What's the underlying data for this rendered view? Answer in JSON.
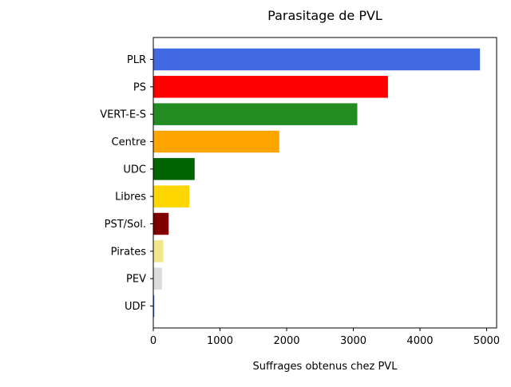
{
  "chart_data": {
    "type": "bar",
    "orientation": "horizontal",
    "title": "Parasitage de PVL",
    "xlabel": "Suffrages obtenus chez PVL",
    "ylabel": "",
    "xlim": [
      0,
      5150
    ],
    "xticks": [
      0,
      1000,
      2000,
      3000,
      4000,
      5000
    ],
    "xtick_labels": [
      "0",
      "1000",
      "2000",
      "3000",
      "4000",
      "5000"
    ],
    "grid": false,
    "legend": "none",
    "categories": [
      "PLR",
      "PS",
      "VERT-E-S",
      "Centre",
      "UDC",
      "Libres",
      "PST/Sol.",
      "Pirates",
      "PEV",
      "UDF"
    ],
    "values": [
      4900,
      3520,
      3060,
      1890,
      620,
      540,
      230,
      150,
      130,
      15
    ],
    "colors": [
      "#4169e1",
      "#ff0000",
      "#228b22",
      "#ffa500",
      "#006400",
      "#ffd700",
      "#800000",
      "#f0e68c",
      "#dcdcdc",
      "#4169e1"
    ]
  }
}
